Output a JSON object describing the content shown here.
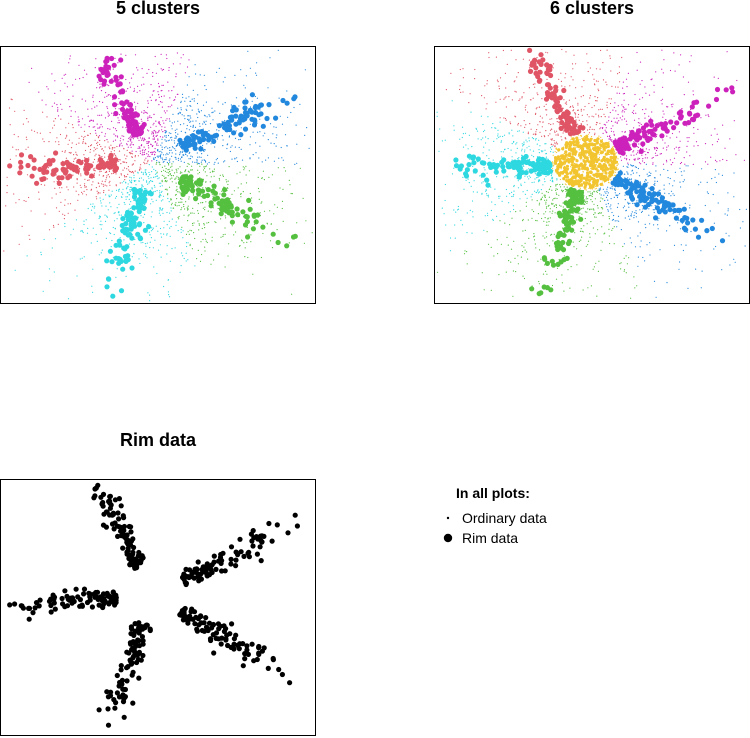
{
  "legend": {
    "title": "In all plots:",
    "entries": [
      {
        "label": "Ordinary data",
        "marker": "small-dot"
      },
      {
        "label": "Rim data",
        "marker": "large-dot"
      }
    ]
  },
  "colors": {
    "red": "#E05566",
    "magenta": "#CC22BB",
    "blue": "#2288DD",
    "green": "#55C040",
    "cyan": "#2ED8E0",
    "yellow": "#F2C530",
    "black": "#000000",
    "frame": "#000000"
  },
  "chart_data": [
    {
      "type": "scatter",
      "title": "5 clusters",
      "xlabel": "",
      "ylabel": "",
      "axes_visible": false,
      "grid": false,
      "arms": [
        {
          "color": "red",
          "angle_deg": 185
        },
        {
          "color": "magenta",
          "angle_deg": 112
        },
        {
          "color": "blue",
          "angle_deg": 30
        },
        {
          "color": "green",
          "angle_deg": -35
        },
        {
          "color": "cyan",
          "angle_deg": -105
        }
      ],
      "center_cluster": null
    },
    {
      "type": "scatter",
      "title": "6 clusters",
      "xlabel": "",
      "ylabel": "",
      "axes_visible": false,
      "grid": false,
      "arms": [
        {
          "color": "cyan",
          "angle_deg": 185
        },
        {
          "color": "red",
          "angle_deg": 112
        },
        {
          "color": "magenta",
          "angle_deg": 30
        },
        {
          "color": "blue",
          "angle_deg": -35
        },
        {
          "color": "green",
          "angle_deg": -105
        }
      ],
      "center_cluster": {
        "color": "yellow"
      }
    },
    {
      "type": "scatter",
      "title": "Rim data",
      "xlabel": "",
      "ylabel": "",
      "axes_visible": false,
      "grid": false,
      "arms": [
        {
          "color": "black",
          "angle_deg": 185
        },
        {
          "color": "black",
          "angle_deg": 112
        },
        {
          "color": "black",
          "angle_deg": 30
        },
        {
          "color": "black",
          "angle_deg": -35
        },
        {
          "color": "black",
          "angle_deg": -105
        }
      ],
      "ordinary_points": false,
      "center_cluster": null
    }
  ]
}
